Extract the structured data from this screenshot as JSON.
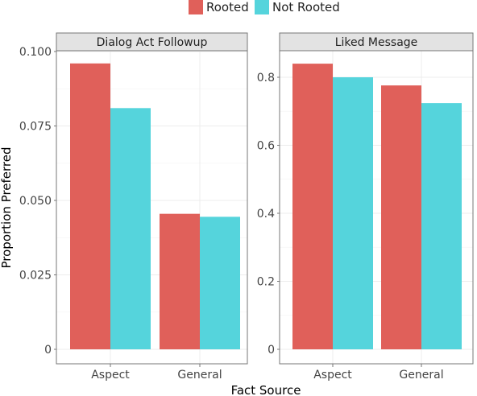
{
  "legend": {
    "items": [
      {
        "label": "Rooted",
        "color": "#e0605a"
      },
      {
        "label": "Not Rooted",
        "color": "#55d4dc"
      }
    ]
  },
  "axes": {
    "xlabel": "Fact Source",
    "ylabel": "Proportion Preferred"
  },
  "chart_data": [
    {
      "type": "bar",
      "title": "Dialog Act Followup",
      "categories": [
        "Aspect",
        "General"
      ],
      "series": [
        {
          "name": "Rooted",
          "values": [
            0.096,
            0.0455
          ]
        },
        {
          "name": "Not Rooted",
          "values": [
            0.081,
            0.0445
          ]
        }
      ],
      "ylim": [
        0,
        0.1
      ],
      "yticks": [
        0,
        0.025,
        0.05,
        0.075,
        0.1
      ],
      "yticklabels": [
        "0",
        "0.025",
        "0.050",
        "0.075",
        "0.100"
      ],
      "xlabel": "Fact Source",
      "ylabel": "Proportion Preferred",
      "grid": true,
      "legend_position": "top"
    },
    {
      "type": "bar",
      "title": "Liked Message",
      "categories": [
        "Aspect",
        "General"
      ],
      "series": [
        {
          "name": "Rooted",
          "values": [
            0.84,
            0.776
          ]
        },
        {
          "name": "Not Rooted",
          "values": [
            0.8,
            0.724
          ]
        }
      ],
      "ylim": [
        0,
        0.8
      ],
      "yticks": [
        0,
        0.2,
        0.4,
        0.6,
        0.8
      ],
      "yticklabels": [
        "0",
        "0.2",
        "0.4",
        "0.6",
        "0.8"
      ],
      "xlabel": "Fact Source",
      "ylabel": "Proportion Preferred",
      "grid": true,
      "legend_position": "top"
    }
  ]
}
